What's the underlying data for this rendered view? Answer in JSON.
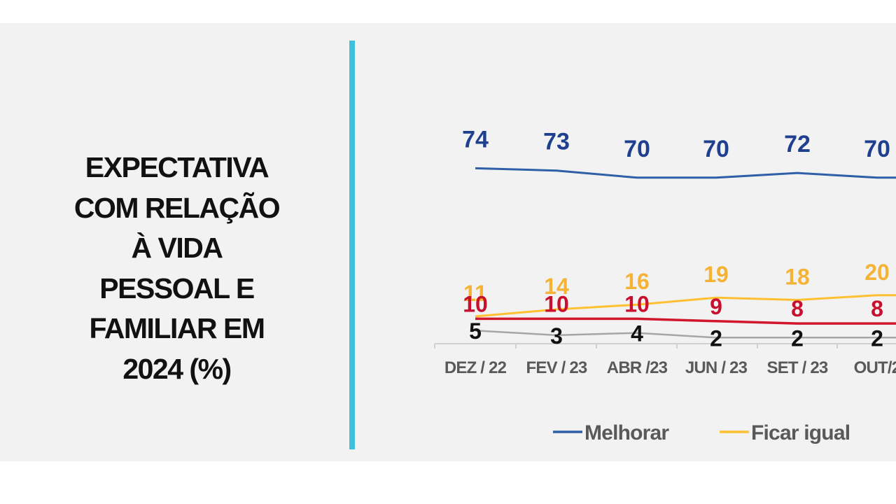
{
  "title_lines": [
    "EXPECTATIVA",
    "COM RELAÇÃO",
    "À VIDA",
    "PESSOAL E",
    "FAMILIAR EM",
    "2024 (%)"
  ],
  "chart_data": {
    "type": "line",
    "categories": [
      "DEZ / 22",
      "FEV / 23",
      "ABR /23",
      "JUN / 23",
      "SET / 23",
      "OUT/2"
    ],
    "series": [
      {
        "name": "Melhorar",
        "color": "#2e5fa8",
        "label_color": "#1f3f8f",
        "values": [
          74,
          73,
          70,
          70,
          72,
          70
        ]
      },
      {
        "name": "Ficar igual",
        "color": "#ffc032",
        "label_color": "#f5b335",
        "values": [
          11,
          14,
          16,
          19,
          18,
          20
        ]
      },
      {
        "name": "",
        "color": "#d0172b",
        "label_color": "#c8102e",
        "values": [
          10,
          10,
          10,
          9,
          8,
          8
        ]
      },
      {
        "name": "",
        "color": "#a6a6a6",
        "label_color": "#111111",
        "values": [
          5,
          3,
          4,
          2,
          2,
          2
        ]
      }
    ],
    "legend": [
      "Melhorar",
      "Ficar igual"
    ],
    "legend_position": "bottom"
  }
}
